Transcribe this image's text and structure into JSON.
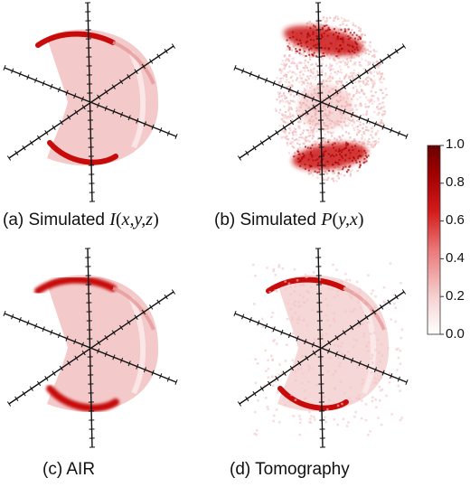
{
  "panels": [
    {
      "label": "(a) Simulated",
      "math": "I",
      "args": "x,y,z",
      "style": "wedge-crisp"
    },
    {
      "label": "(b) Simulated",
      "math": "P",
      "args": "y,x",
      "style": "noisy-disc"
    },
    {
      "label": "(c) AIR",
      "math": "",
      "args": "",
      "style": "wedge-smooth"
    },
    {
      "label": "(d) Tomography",
      "math": "",
      "args": "",
      "style": "wedge-noisy"
    }
  ],
  "colorbar": {
    "ticks": [
      "1.0",
      "0.8",
      "0.6",
      "0.4",
      "0.2",
      "0.0"
    ],
    "min": 0.0,
    "max": 1.0,
    "colors": [
      "#ffffff",
      "#f6d0d0",
      "#e97777",
      "#d41b1b",
      "#a00000",
      "#6a0000"
    ]
  },
  "colors": {
    "axis": "#111111",
    "base": "#f2c6c6",
    "hot": "#c40000"
  }
}
